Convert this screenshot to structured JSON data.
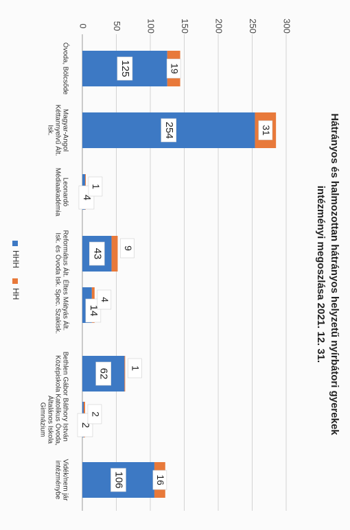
{
  "chart_data": {
    "type": "bar",
    "stacked": true,
    "title_lines": [
      "Hátrányos és halmozottan hátrányos helyzetű nyírbátori gyerekek",
      "intézményi megoszlása 2021. 12. 31."
    ],
    "categories": [
      [
        "Óvoda, Bölcsőde"
      ],
      [
        "Magyar-Angol",
        "Kéttannyelvű Ált.",
        "Isk."
      ],
      [
        "Leonardó",
        "Médiaakadémia"
      ],
      [
        "Református Ált.",
        "Isk. és Óvoda"
      ],
      [
        "Éltes Mátyás Ált.",
        "Isk. Spec. Szakisk."
      ],
      [
        "Bethlen Gábor",
        "Középiskola"
      ],
      [
        "Báthory István",
        "Katolikus Óvoda,",
        "Általános Iskola",
        "Gimnázium"
      ],
      [
        "Vidék/nem jár",
        "intézménybe"
      ]
    ],
    "series": [
      {
        "name": "HHH",
        "color": "#3d79c4",
        "values": [
          125,
          254,
          4,
          43,
          14,
          62,
          2,
          106
        ]
      },
      {
        "name": "HH",
        "color": "#e8793a",
        "values": [
          19,
          31,
          1,
          9,
          4,
          1,
          2,
          16
        ]
      }
    ],
    "ylim": [
      0,
      300
    ],
    "yticks": [
      0,
      50,
      100,
      150,
      200,
      250,
      300
    ],
    "grid": true,
    "legend_position": "bottom",
    "orientation_note_rotated_page": true
  }
}
